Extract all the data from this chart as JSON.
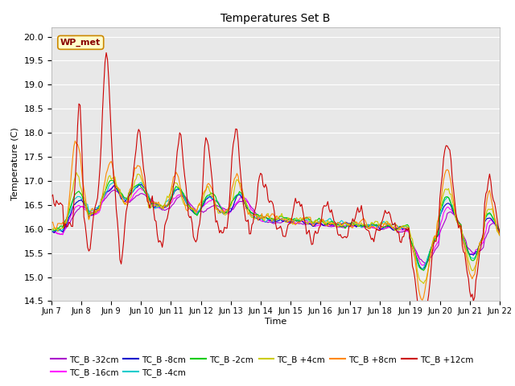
{
  "title": "Temperatures Set B",
  "xlabel": "Time",
  "ylabel": "Temperature (C)",
  "ylim": [
    14.5,
    20.2
  ],
  "xlim": [
    0,
    360
  ],
  "x_tick_labels": [
    "Jun 7",
    "Jun 8",
    "Jun 9",
    "Jun 10",
    "Jun 11",
    "Jun 12",
    "Jun 13",
    "Jun 14",
    "Jun 15",
    "Jun 16",
    "Jun 17",
    "Jun 18",
    "Jun 19",
    "Jun 20",
    "Jun 21",
    "Jun 22"
  ],
  "x_tick_positions": [
    0,
    24,
    48,
    72,
    96,
    120,
    144,
    168,
    192,
    216,
    240,
    264,
    288,
    312,
    336,
    360
  ],
  "series_colors": {
    "TC_B -32cm": "#aa00cc",
    "TC_B -16cm": "#ff00ff",
    "TC_B -8cm": "#0000cc",
    "TC_B -4cm": "#00cccc",
    "TC_B -2cm": "#00cc00",
    "TC_B +4cm": "#cccc00",
    "TC_B +8cm": "#ff8800",
    "TC_B +12cm": "#cc0000"
  },
  "annotation_text": "WP_met",
  "bg_color": "#e8e8e8",
  "fig_color": "#ffffff",
  "grid_color": "#ffffff",
  "n_points": 361,
  "yticks": [
    14.5,
    15.0,
    15.5,
    16.0,
    16.5,
    17.0,
    17.5,
    18.0,
    18.5,
    19.0,
    19.5,
    20.0
  ]
}
